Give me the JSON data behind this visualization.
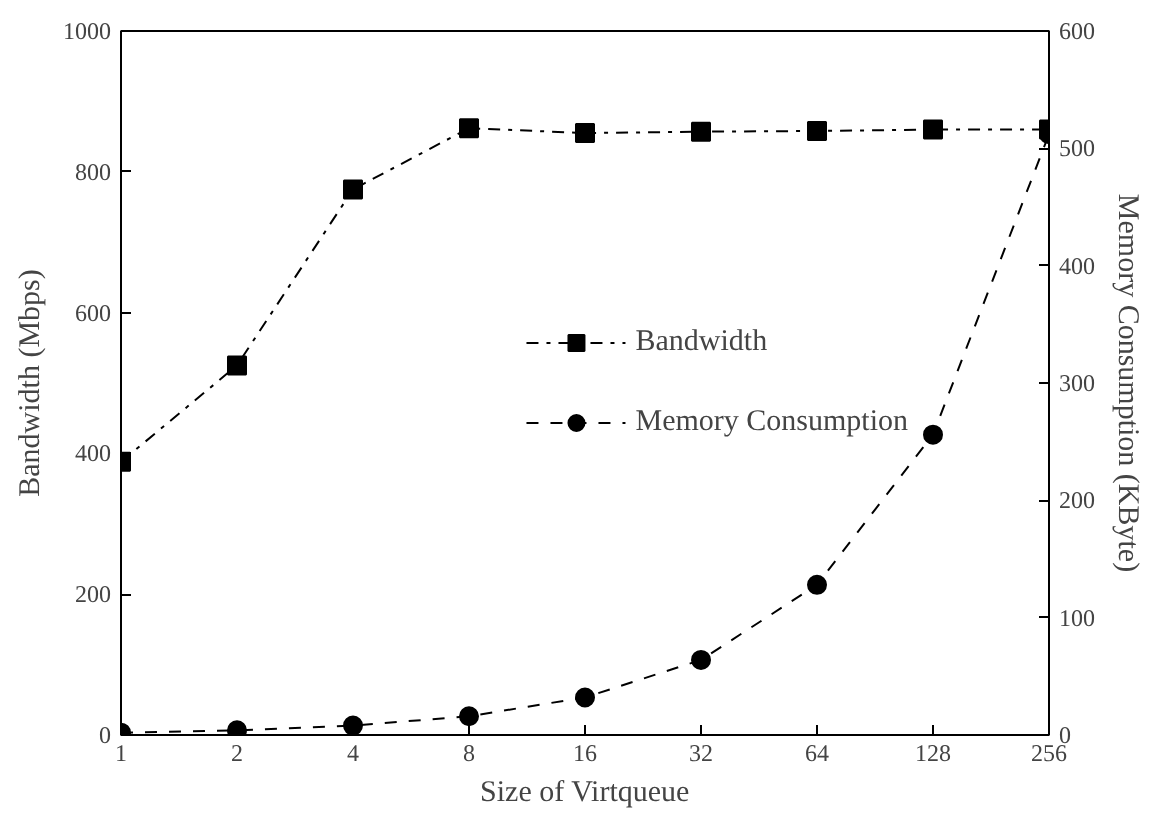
{
  "chart_data": {
    "type": "line",
    "xlabel": "Size of Virtqueue",
    "ylabel": "Bandwidth (Mbps)",
    "y2label": "Memory Consumption (KByte)",
    "categories": [
      "1",
      "2",
      "4",
      "8",
      "16",
      "32",
      "64",
      "128",
      "256"
    ],
    "series": [
      {
        "name": "Bandwidth",
        "color": "#000000",
        "marker": "square",
        "line_style": "dashed",
        "values": [
          388,
          525,
          775,
          862,
          855,
          857,
          858,
          860,
          860
        ]
      },
      {
        "name": "Memory Consumption",
        "color": "#000000",
        "marker": "circle",
        "line_style": "dotted",
        "axis": "y2",
        "values": [
          2,
          4,
          8,
          16,
          32,
          64,
          128,
          256,
          512
        ]
      }
    ],
    "ylim": [
      0,
      1000
    ],
    "yticks": [
      0,
      200,
      400,
      600,
      800,
      1000
    ],
    "y2lim": [
      0,
      600
    ],
    "y2ticks": [
      0,
      100,
      200,
      300,
      400,
      500,
      600
    ],
    "grid": false,
    "legend": "right"
  }
}
